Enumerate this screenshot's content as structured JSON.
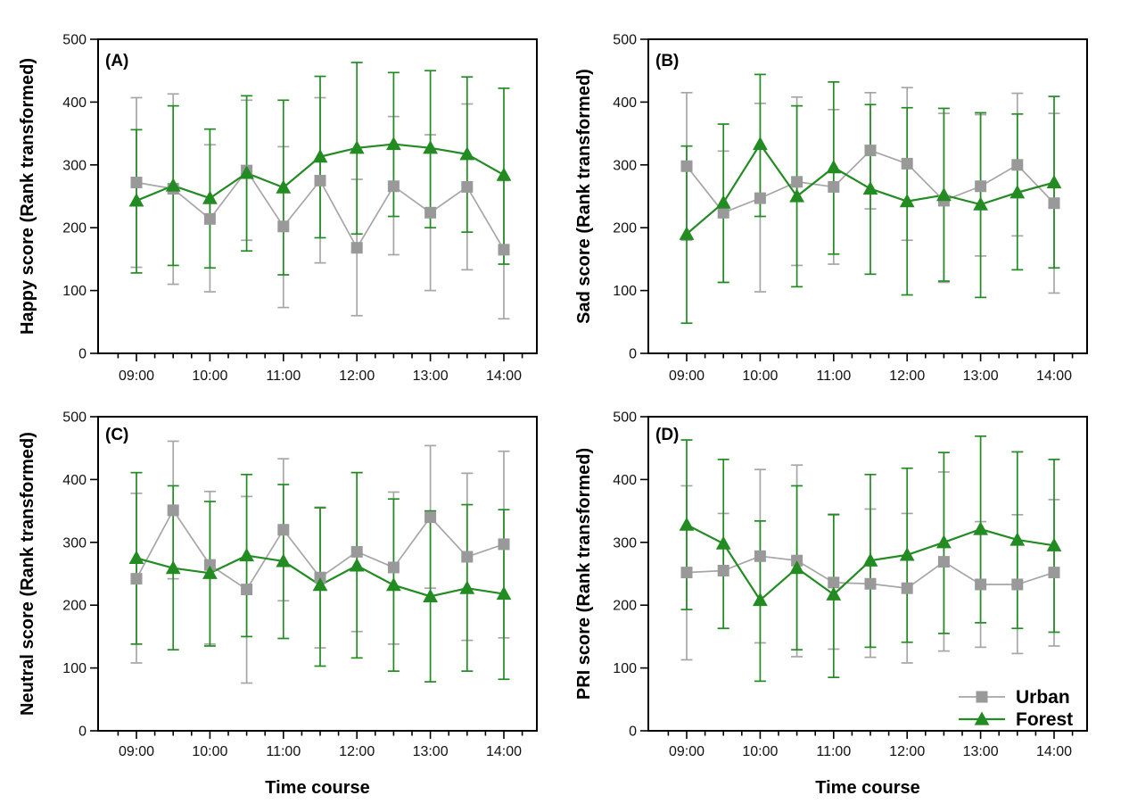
{
  "figure": {
    "background": "#ffffff",
    "x_axis_label": "Time course",
    "y_range": [
      0,
      500
    ],
    "y_ticks": [
      "0",
      "100",
      "200",
      "300",
      "400",
      "500"
    ],
    "x_hour_labels": [
      "09:00",
      "10:00",
      "11:00",
      "12:00",
      "13:00",
      "14:00"
    ],
    "colors": {
      "urban_marker": "#999999",
      "urban_line": "#a6a6a6",
      "forest": "#228B22",
      "axis": "#000000"
    },
    "legend": {
      "location": "panel D, lower right",
      "items": [
        {
          "label": "Urban",
          "marker": "square",
          "color": "#999999",
          "line_color": "#a6a6a6"
        },
        {
          "label": "Forest",
          "marker": "triangle",
          "color": "#228B22",
          "line_color": "#228B22"
        }
      ]
    }
  },
  "chart_data": [
    {
      "type": "line",
      "panel_label": "(A)",
      "ylabel": "Happy score (Rank transformed)",
      "xlabel": "",
      "ylim": [
        0,
        500
      ],
      "categories": [
        "09:00",
        "09:30",
        "10:00",
        "10:30",
        "11:00",
        "11:30",
        "12:00",
        "12:30",
        "13:00",
        "13:30",
        "14:00"
      ],
      "show_x_title": false,
      "show_legend": false,
      "series": [
        {
          "name": "Urban",
          "marker": "square",
          "color": "#999999",
          "line_color": "#a6a6a6",
          "values": [
            272,
            262,
            214,
            291,
            202,
            275,
            168,
            266,
            224,
            265,
            165
          ],
          "err_low": [
            137,
            110,
            98,
            180,
            73,
            144,
            60,
            157,
            100,
            133,
            55
          ],
          "err_high": [
            407,
            413,
            332,
            403,
            329,
            407,
            277,
            377,
            348,
            397,
            275
          ]
        },
        {
          "name": "Forest",
          "marker": "triangle",
          "color": "#228B22",
          "line_color": "#228B22",
          "values": [
            243,
            267,
            247,
            287,
            264,
            313,
            327,
            333,
            327,
            317,
            284
          ],
          "err_low": [
            128,
            140,
            136,
            163,
            125,
            184,
            190,
            218,
            200,
            193,
            142
          ],
          "err_high": [
            356,
            394,
            357,
            410,
            403,
            441,
            463,
            447,
            450,
            440,
            422
          ]
        }
      ]
    },
    {
      "type": "line",
      "panel_label": "(B)",
      "ylabel": "Sad score (Rank transformed)",
      "xlabel": "",
      "ylim": [
        0,
        500
      ],
      "categories": [
        "09:00",
        "09:30",
        "10:00",
        "10:30",
        "11:00",
        "11:30",
        "12:00",
        "12:30",
        "13:00",
        "13:30",
        "14:00"
      ],
      "show_x_title": false,
      "show_legend": false,
      "series": [
        {
          "name": "Urban",
          "marker": "square",
          "color": "#999999",
          "line_color": "#a6a6a6",
          "values": [
            298,
            224,
            247,
            273,
            265,
            323,
            302,
            243,
            266,
            300,
            239
          ],
          "err_low": [
            180,
            113,
            98,
            140,
            142,
            230,
            180,
            113,
            155,
            187,
            96
          ],
          "err_high": [
            415,
            322,
            398,
            408,
            388,
            415,
            423,
            382,
            380,
            414,
            382
          ]
        },
        {
          "name": "Forest",
          "marker": "triangle",
          "color": "#228B22",
          "line_color": "#228B22",
          "values": [
            190,
            240,
            333,
            250,
            296,
            262,
            242,
            252,
            237,
            256,
            272
          ],
          "err_low": [
            48,
            113,
            218,
            106,
            158,
            126,
            93,
            115,
            89,
            133,
            136
          ],
          "err_high": [
            330,
            365,
            444,
            394,
            432,
            396,
            391,
            390,
            383,
            381,
            409
          ]
        }
      ]
    },
    {
      "type": "line",
      "panel_label": "(C)",
      "ylabel": "Neutral score (Rank transformed)",
      "xlabel": "Time course",
      "ylim": [
        0,
        500
      ],
      "categories": [
        "09:00",
        "09:30",
        "10:00",
        "10:30",
        "11:00",
        "11:30",
        "12:00",
        "12:30",
        "13:00",
        "13:30",
        "14:00"
      ],
      "show_x_title": true,
      "show_legend": false,
      "series": [
        {
          "name": "Urban",
          "marker": "square",
          "color": "#999999",
          "line_color": "#a6a6a6",
          "values": [
            242,
            351,
            264,
            225,
            320,
            244,
            285,
            260,
            340,
            277,
            297
          ],
          "err_low": [
            108,
            242,
            138,
            76,
            207,
            132,
            158,
            138,
            227,
            144,
            148
          ],
          "err_high": [
            378,
            461,
            381,
            373,
            433,
            356,
            411,
            380,
            454,
            410,
            445
          ]
        },
        {
          "name": "Forest",
          "marker": "triangle",
          "color": "#228B22",
          "line_color": "#228B22",
          "values": [
            275,
            259,
            251,
            279,
            270,
            232,
            263,
            232,
            214,
            227,
            218
          ],
          "err_low": [
            138,
            129,
            135,
            150,
            147,
            103,
            116,
            95,
            78,
            95,
            82
          ],
          "err_high": [
            411,
            390,
            365,
            408,
            392,
            355,
            411,
            369,
            350,
            360,
            352
          ]
        }
      ]
    },
    {
      "type": "line",
      "panel_label": "(D)",
      "ylabel": "PRI score (Rank transformed)",
      "xlabel": "Time course",
      "ylim": [
        0,
        500
      ],
      "categories": [
        "09:00",
        "09:30",
        "10:00",
        "10:30",
        "11:00",
        "11:30",
        "12:00",
        "12:30",
        "13:00",
        "13:30",
        "14:00"
      ],
      "show_x_title": true,
      "show_legend": true,
      "series": [
        {
          "name": "Urban",
          "marker": "square",
          "color": "#999999",
          "line_color": "#a6a6a6",
          "values": [
            252,
            255,
            278,
            271,
            236,
            234,
            227,
            269,
            233,
            233,
            252
          ],
          "err_low": [
            113,
            163,
            140,
            118,
            130,
            117,
            108,
            127,
            133,
            123,
            135
          ],
          "err_high": [
            390,
            346,
            416,
            423,
            345,
            353,
            346,
            412,
            333,
            344,
            368
          ]
        },
        {
          "name": "Forest",
          "marker": "triangle",
          "color": "#228B22",
          "line_color": "#228B22",
          "values": [
            328,
            298,
            208,
            259,
            217,
            271,
            280,
            300,
            321,
            304,
            295
          ],
          "err_low": [
            193,
            163,
            79,
            129,
            85,
            133,
            141,
            155,
            172,
            163,
            157
          ],
          "err_high": [
            463,
            432,
            334,
            390,
            344,
            408,
            418,
            443,
            469,
            444,
            432
          ]
        }
      ]
    }
  ]
}
